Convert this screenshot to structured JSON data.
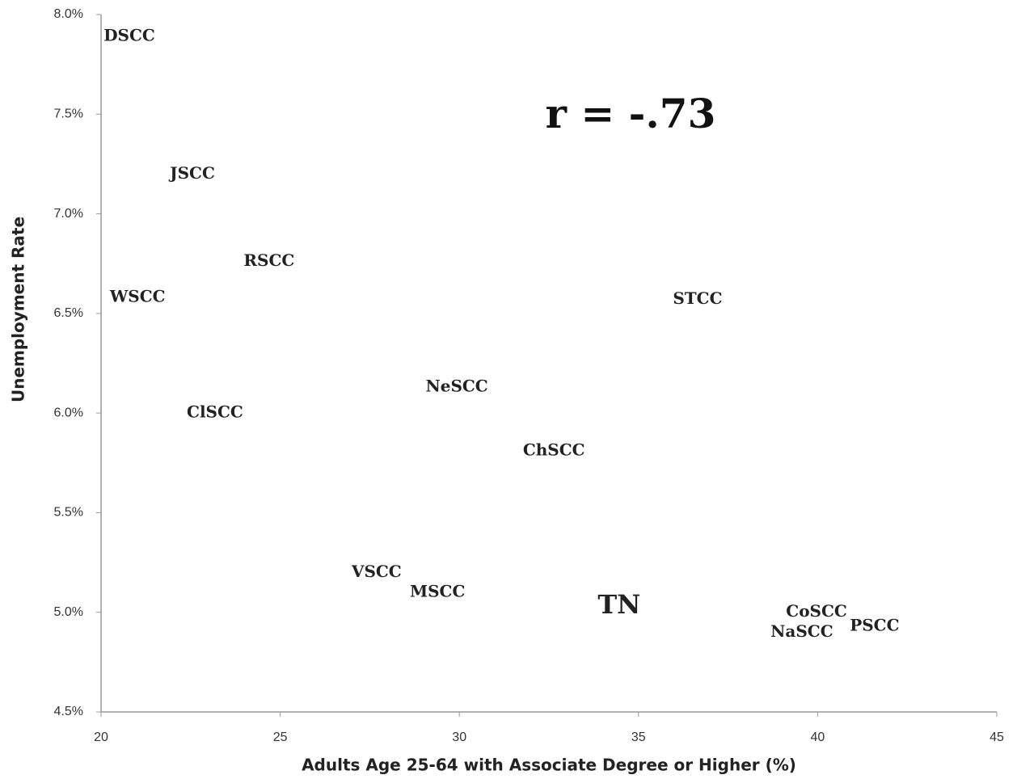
{
  "chart_data": {
    "type": "scatter",
    "annotation": "r = -.73",
    "x_label": "Adults Age 25-64 with Associate Degree or Higher (%)",
    "y_label": "Unemployment Rate",
    "labels": [
      "DSCC",
      "JSCC",
      "RSCC",
      "WSCC",
      "STCC",
      "NeSCC",
      "ClSCC",
      "ChSCC",
      "VSCC",
      "MSCC",
      "TN",
      "CoSCC",
      "NaSCC",
      "PSCC"
    ],
    "x": [
      20.79,
      22.55,
      24.69,
      21.02,
      36.65,
      29.93,
      23.18,
      32.64,
      27.69,
      29.39,
      34.46,
      39.97,
      39.56,
      41.59
    ],
    "values": [
      7.89,
      7.2,
      6.76,
      6.58,
      6.57,
      6.13,
      6.0,
      5.81,
      5.2,
      5.1,
      5.03,
      5.0,
      4.9,
      4.93
    ],
    "label_colors": [
      "#111",
      "#111",
      "#111",
      "#111",
      "#111",
      "#111",
      "#111",
      "#111",
      "#111",
      "#111",
      "#e00000",
      "#111",
      "#111",
      "#111"
    ],
    "xlim": [
      20,
      45
    ],
    "xticks": [
      20,
      25,
      30,
      35,
      40,
      45
    ],
    "ylim": [
      4.5,
      8.0
    ],
    "yticks": [
      {
        "value": 4.5,
        "label": "4.5%"
      },
      {
        "value": 5.0,
        "label": "5.0%"
      },
      {
        "value": 5.5,
        "label": "5.5%"
      },
      {
        "value": 6.0,
        "label": "6.0%"
      },
      {
        "value": 6.5,
        "label": "6.5%"
      },
      {
        "value": 7.0,
        "label": "7.0%"
      },
      {
        "value": 7.5,
        "label": "7.5%"
      },
      {
        "value": 8.0,
        "label": "8.0%"
      }
    ]
  }
}
